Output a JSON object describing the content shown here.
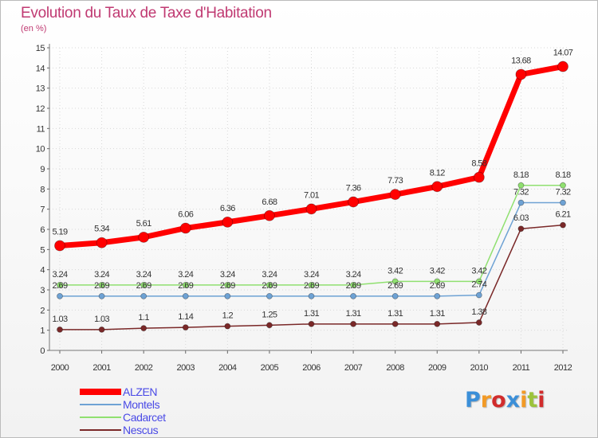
{
  "chart_data": {
    "type": "line",
    "title": "Evolution du Taux de Taxe d'Habitation",
    "unit_label": "(en %)",
    "xlabel": "",
    "ylabel": "(en %)",
    "ylim": [
      0,
      15
    ],
    "yticks": [
      0,
      1,
      2,
      3,
      4,
      5,
      6,
      7,
      8,
      9,
      10,
      11,
      12,
      13,
      14,
      15
    ],
    "grid": true,
    "legend": "bottom-left",
    "categories": [
      "2000",
      "2001",
      "2002",
      "2003",
      "2004",
      "2005",
      "2006",
      "2007",
      "2008",
      "2009",
      "2010",
      "2011",
      "2012"
    ],
    "series": [
      {
        "name": "ALZEN",
        "color": "#ff0000",
        "values": [
          5.19,
          5.34,
          5.61,
          6.06,
          6.36,
          6.68,
          7.01,
          7.36,
          7.73,
          8.12,
          8.58,
          13.68,
          14.07
        ],
        "labels": [
          "5.19",
          "5.34",
          "5.61",
          "6.06",
          "6.36",
          "6.68",
          "7.01",
          "7.36",
          "7.73",
          "8.12",
          "8.58",
          "13.68",
          "14.07"
        ]
      },
      {
        "name": "Montels",
        "color": "#6ea2d4",
        "values": [
          2.69,
          2.69,
          2.69,
          2.69,
          2.69,
          2.69,
          2.69,
          2.69,
          2.69,
          2.69,
          2.74,
          7.32,
          7.32
        ],
        "labels": [
          "2.69",
          "2.69",
          "2.69",
          "2.69",
          "2.69",
          "2.69",
          "2.69",
          "2.69",
          "2.69",
          "2.69",
          "2.74",
          "7.32",
          "7.32"
        ]
      },
      {
        "name": "Cadarcet",
        "color": "#90e070",
        "values": [
          3.24,
          3.24,
          3.24,
          3.24,
          3.24,
          3.24,
          3.24,
          3.24,
          3.42,
          3.42,
          3.42,
          8.18,
          8.18
        ],
        "labels": [
          "3.24",
          "3.24",
          "3.24",
          "3.24",
          "3.24",
          "3.24",
          "3.24",
          "3.24",
          "3.42",
          "3.42",
          "3.42",
          "8.18",
          "8.18"
        ]
      },
      {
        "name": "Nescus",
        "color": "#7a2828",
        "values": [
          1.03,
          1.03,
          1.1,
          1.14,
          1.2,
          1.25,
          1.31,
          1.31,
          1.31,
          1.31,
          1.38,
          6.03,
          6.21
        ],
        "labels": [
          "1.03",
          "1.03",
          "1.1",
          "1.14",
          "1.2",
          "1.25",
          "1.31",
          "1.31",
          "1.31",
          "1.31",
          "1.38",
          "6.03",
          "6.21"
        ]
      }
    ]
  },
  "logo": {
    "text": "Proxiti",
    "colors": [
      "#3b8fd8",
      "#f29a26",
      "#d12c2c",
      "#3b8fd8",
      "#f29a26",
      "#9cc33b",
      "#d12c2c"
    ]
  }
}
